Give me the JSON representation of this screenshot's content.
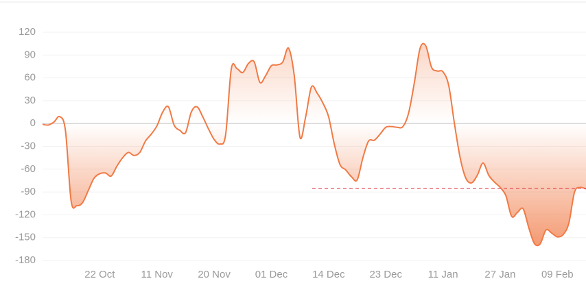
{
  "chart_data": {
    "type": "line",
    "categories": [
      null,
      null,
      null,
      null,
      null,
      null,
      null,
      null,
      null,
      null,
      "22 Oct",
      null,
      null,
      null,
      null,
      null,
      null,
      null,
      null,
      null,
      "11 Nov",
      null,
      null,
      null,
      null,
      null,
      null,
      null,
      null,
      null,
      "20 Nov",
      null,
      null,
      null,
      null,
      null,
      null,
      null,
      null,
      null,
      "01 Dec",
      null,
      null,
      null,
      null,
      null,
      null,
      null,
      null,
      null,
      "14 Dec",
      null,
      null,
      null,
      null,
      null,
      null,
      null,
      null,
      null,
      "23 Dec",
      null,
      null,
      null,
      null,
      null,
      null,
      null,
      null,
      null,
      "11 Jan",
      null,
      null,
      null,
      null,
      null,
      null,
      null,
      null,
      null,
      "27 Jan",
      null,
      null,
      null,
      null,
      null,
      null,
      null,
      null,
      null,
      "09 Feb",
      null,
      null,
      null,
      null,
      null
    ],
    "series": [
      {
        "color": "#f07a45",
        "values": [
          -1,
          -2,
          2,
          9,
          -9,
          -102,
          -108,
          -104,
          -88,
          -72,
          -66,
          -65,
          -69,
          -56,
          -45,
          -38,
          -42,
          -38,
          -23,
          -14,
          -3,
          15,
          22,
          -2,
          -9,
          -12,
          15,
          22,
          9,
          -7,
          -21,
          -27,
          -15,
          72,
          72,
          67,
          79,
          81,
          54,
          63,
          76,
          77,
          81,
          99,
          63,
          -18,
          9,
          48,
          40,
          27,
          9,
          -27,
          -54,
          -61,
          -70,
          -74,
          -45,
          -23,
          -22,
          -14,
          -5,
          -4,
          -5,
          -4,
          14,
          54,
          99,
          102,
          74,
          69,
          68,
          50,
          0,
          -45,
          -72,
          -78,
          -68,
          -52,
          -68,
          -77,
          -84,
          -95,
          -122,
          -117,
          -112,
          -137,
          -158,
          -158,
          -140,
          -144,
          -149,
          -146,
          -131,
          -90,
          -84,
          -86
        ]
      }
    ],
    "ylim": [
      -180,
      120
    ],
    "yticks": [
      -180,
      -150,
      -120,
      -90,
      -60,
      -30,
      0,
      30,
      60,
      90,
      120
    ],
    "reference_line": {
      "value": -85,
      "color": "#e0404a"
    },
    "grid": true
  }
}
